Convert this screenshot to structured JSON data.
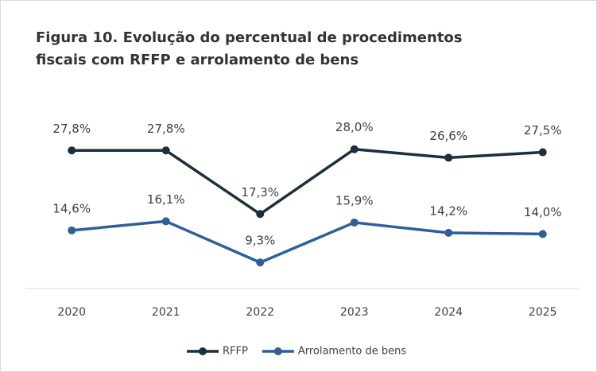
{
  "chart_data": {
    "type": "line",
    "title": "Figura  10. Evolução do percentual de procedimentos",
    "subtitle": "fiscais com RFFP e arrolamento de bens",
    "categories": [
      "2020",
      "2021",
      "2022",
      "2023",
      "2024",
      "2025"
    ],
    "series": [
      {
        "name": "RFFP",
        "color": "#1b2f3d",
        "values": [
          27.8,
          27.8,
          17.3,
          28.0,
          26.6,
          27.5
        ],
        "value_labels": [
          "27,8%",
          "27,8%",
          "17,3%",
          "28,0%",
          "26,6%",
          "27,5%"
        ]
      },
      {
        "name": "Arrolamento de bens",
        "color": "#2f5f99",
        "values": [
          14.6,
          16.1,
          9.3,
          15.9,
          14.2,
          14.0
        ],
        "value_labels": [
          "14,6%",
          "16,1%",
          "9,3%",
          "15,9%",
          "14,2%",
          "14,0%"
        ]
      }
    ],
    "ylim": [
      5,
      35
    ],
    "legend": "bottom"
  }
}
